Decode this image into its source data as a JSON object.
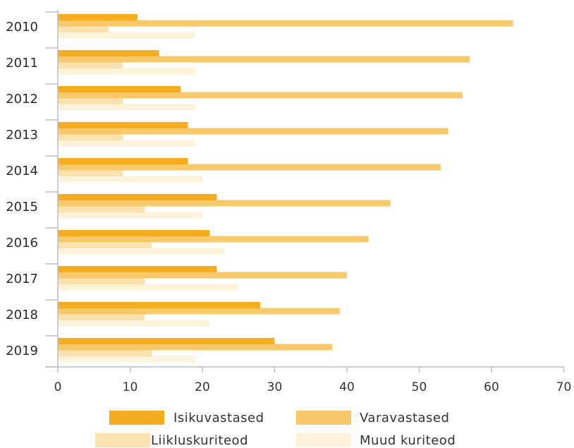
{
  "chart_data": {
    "type": "bar",
    "orientation": "horizontal",
    "categories": [
      "2010",
      "2011",
      "2012",
      "2013",
      "2014",
      "2015",
      "2016",
      "2017",
      "2018",
      "2019"
    ],
    "series": [
      {
        "name": "Isikuvastased",
        "color": "#f5ad1f",
        "values": [
          11,
          14,
          17,
          18,
          18,
          22,
          21,
          22,
          28,
          30
        ]
      },
      {
        "name": "Varavastased",
        "color": "#f8c96a",
        "values": [
          63,
          57,
          56,
          54,
          53,
          46,
          43,
          40,
          39,
          38
        ]
      },
      {
        "name": "Liikluskuriteod",
        "color": "#fbe1ad",
        "values": [
          7,
          9,
          9,
          9,
          9,
          12,
          13,
          12,
          12,
          13
        ]
      },
      {
        "name": "Muud kuriteod",
        "color": "#fdf2da",
        "values": [
          19,
          19,
          19,
          19,
          20,
          20,
          23,
          25,
          21,
          19
        ]
      }
    ],
    "x_ticks": [
      "0",
      "10",
      "20",
      "30",
      "40",
      "50",
      "60",
      "70"
    ],
    "xlim": [
      0,
      70
    ],
    "grid": false,
    "legend_position": "bottom",
    "title": "",
    "xlabel": "",
    "ylabel": ""
  }
}
